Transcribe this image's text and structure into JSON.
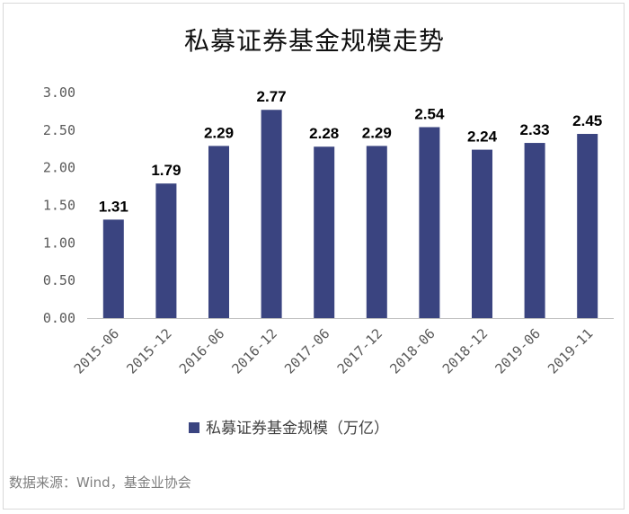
{
  "chart_data": {
    "type": "bar",
    "title": "私募证券基金规模走势",
    "categories": [
      "2015-06",
      "2015-12",
      "2016-06",
      "2016-12",
      "2017-06",
      "2017-12",
      "2018-06",
      "2018-12",
      "2019-06",
      "2019-11"
    ],
    "series": [
      {
        "name": "私募证券基金规模（万亿）",
        "values": [
          1.31,
          1.79,
          2.29,
          2.77,
          2.28,
          2.29,
          2.54,
          2.24,
          2.33,
          2.45
        ],
        "color": "#3a4480"
      }
    ],
    "value_labels": [
      "1.31",
      "1.79",
      "2.29",
      "2.77",
      "2.28",
      "2.29",
      "2.54",
      "2.24",
      "2.33",
      "2.45"
    ],
    "ylim": [
      0,
      3
    ],
    "yticks": [
      "0.00",
      "0.50",
      "1.00",
      "1.50",
      "2.00",
      "2.50",
      "3.00"
    ],
    "grid": false,
    "legend_position": "bottom",
    "xlabel": "",
    "ylabel": ""
  },
  "footer": {
    "source": "数据来源：Wind，基金业协会"
  }
}
